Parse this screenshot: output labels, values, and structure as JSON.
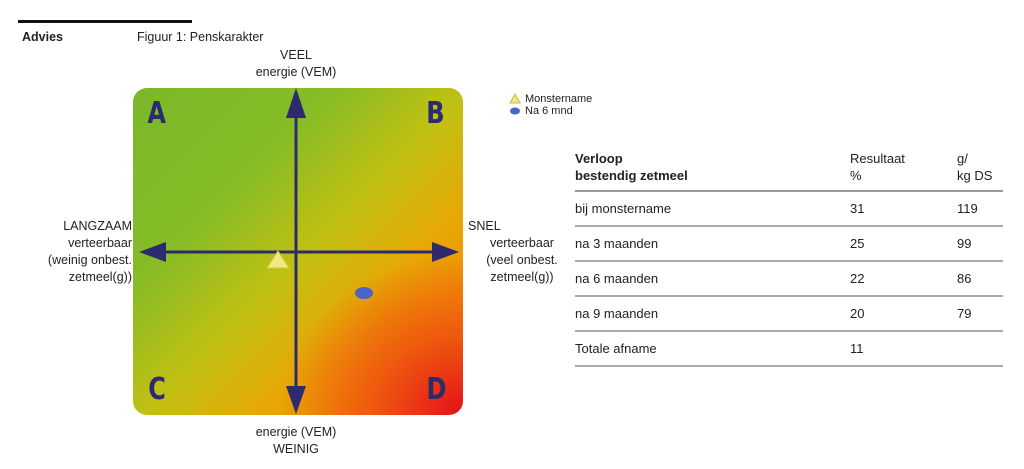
{
  "header": {
    "section": "Advies",
    "figure_title": "Figuur 1: Penskarakter"
  },
  "figure": {
    "top_label": [
      "VEEL",
      "energie (VEM)"
    ],
    "bottom_label": [
      "energie (VEM)",
      "WEINIG"
    ],
    "left_label": [
      "LANGZAAM",
      "verteerbaar",
      "(weinig onbest.",
      "zetmeel(g))"
    ],
    "right_label": [
      "SNEL",
      "verteerbaar",
      "(veel onbest.",
      "zetmeel(g))"
    ],
    "quadrants": [
      "A",
      "B",
      "C",
      "D"
    ],
    "legend": [
      {
        "label": "Monstername",
        "marker": "triangle",
        "color": "#f0ea80"
      },
      {
        "label": "Na 6 mnd",
        "marker": "ellipse",
        "color": "#4a64c8"
      }
    ],
    "colors": {
      "arrow": "#2d2a6e",
      "green": "#7ab82a",
      "yellow": "#c2c012",
      "orange": "#f29404",
      "red": "#e4101a"
    }
  },
  "table": {
    "headers": [
      "Verloop\nbestendig zetmeel",
      "Resultaat\n%",
      "g/\nkg DS"
    ],
    "rows": [
      [
        "bij monstername",
        "31",
        "119"
      ],
      [
        "na 3 maanden",
        "25",
        "99"
      ],
      [
        "na 6 maanden",
        "22",
        "86"
      ],
      [
        "na 9 maanden",
        "20",
        "79"
      ],
      [
        "Totale afname",
        "11",
        ""
      ]
    ]
  }
}
